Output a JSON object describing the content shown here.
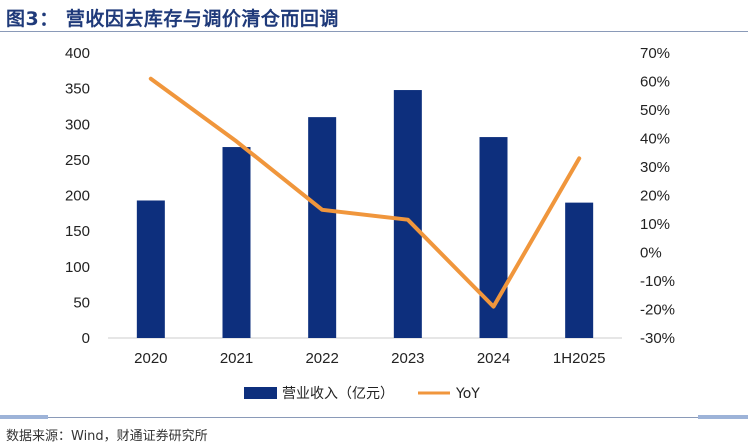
{
  "title": "图3： 营收因去库存与调价清仓而回调",
  "source": "数据来源：Wind，财通证券研究所",
  "chart_data": {
    "type": "bar+line",
    "categories": [
      "2020",
      "2021",
      "2022",
      "2023",
      "2024",
      "1H2025"
    ],
    "series": [
      {
        "name": "营业收入（亿元）",
        "type": "bar",
        "axis": "left",
        "color": "#0d2f7d",
        "values": [
          193,
          268,
          310,
          348,
          282,
          190
        ]
      },
      {
        "name": "YoY",
        "type": "line",
        "axis": "right",
        "color": "#f0963c",
        "values": [
          0.61,
          0.39,
          0.15,
          0.115,
          -0.19,
          0.33
        ]
      }
    ],
    "y_left": {
      "min": 0,
      "max": 400,
      "ticks": [
        0,
        50,
        100,
        150,
        200,
        250,
        300,
        350,
        400
      ],
      "tick_labels": [
        "0",
        "50",
        "100",
        "150",
        "200",
        "250",
        "300",
        "350",
        "400"
      ]
    },
    "y_right": {
      "min": -0.3,
      "max": 0.7,
      "ticks": [
        -0.3,
        -0.2,
        -0.1,
        0,
        0.1,
        0.2,
        0.3,
        0.4,
        0.5,
        0.6,
        0.7
      ],
      "tick_labels": [
        "-30%",
        "-20%",
        "-10%",
        "0%",
        "10%",
        "20%",
        "30%",
        "40%",
        "50%",
        "60%",
        "70%"
      ]
    },
    "grid": false,
    "legend": "bottom"
  }
}
